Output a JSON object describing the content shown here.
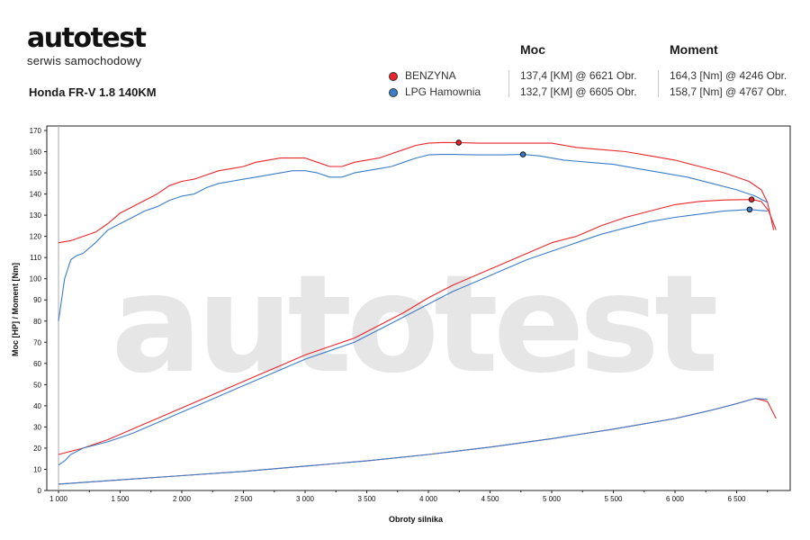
{
  "brand": {
    "logo": "autotest",
    "subtitle": "serwis samochodowy"
  },
  "vehicle": "Honda FR-V 1.8 140KM",
  "table": {
    "headers": {
      "power": "Moc",
      "torque": "Moment"
    },
    "rows": [
      {
        "name": "BENZYNA",
        "color": "#e8262b",
        "power": "137,4 [KM] @ 6621 Obr.",
        "torque": "164,3 [Nm] @ 4246 Obr."
      },
      {
        "name": "LPG Hamownia",
        "color": "#3a7dc9",
        "power": "132,7 [KM] @ 6605 Obr.",
        "torque": "158,7 [Nm] @ 4767 Obr."
      }
    ]
  },
  "chart_data": {
    "type": "line",
    "xlabel": "Obroty silnika",
    "ylabel": "Moc [HP] / Moment [Nm]",
    "xlim": [
      1000,
      6900
    ],
    "ylim": [
      0,
      170
    ],
    "x_ticks": [
      1000,
      1500,
      2000,
      2500,
      3000,
      3500,
      4000,
      4500,
      5000,
      5500,
      6000,
      6500
    ],
    "x_tick_labels": [
      "1 000",
      "1 500",
      "2 000",
      "2 500",
      "3 000",
      "3 500",
      "4 000",
      "4 500",
      "5 000",
      "5 500",
      "6 000",
      "6 500"
    ],
    "y_ticks": [
      0,
      10,
      20,
      30,
      40,
      50,
      60,
      70,
      80,
      90,
      100,
      110,
      120,
      130,
      140,
      150,
      160,
      170
    ],
    "grid": false,
    "watermark": "autotest",
    "series": [
      {
        "name": "BENZYNA",
        "kind": "torque",
        "color": "#e8262b",
        "x": [
          1000,
          1100,
          1200,
          1300,
          1400,
          1500,
          1600,
          1700,
          1800,
          1900,
          2000,
          2100,
          2200,
          2300,
          2400,
          2500,
          2600,
          2700,
          2800,
          2900,
          3000,
          3100,
          3200,
          3300,
          3400,
          3500,
          3600,
          3700,
          3800,
          3900,
          4000,
          4100,
          4246,
          4400,
          4600,
          4800,
          5000,
          5200,
          5400,
          5600,
          5800,
          6000,
          6200,
          6400,
          6600,
          6700,
          6750,
          6800
        ],
        "y": [
          117,
          118,
          120,
          122,
          126,
          131,
          134,
          137,
          140,
          144,
          146,
          147,
          149,
          151,
          152,
          153,
          155,
          156,
          157,
          157,
          157,
          155,
          153,
          153,
          155,
          156,
          157,
          159,
          161,
          163,
          164,
          164.3,
          164.3,
          164,
          164,
          164,
          164,
          162,
          161,
          160,
          158,
          156,
          153,
          150,
          146,
          142,
          136,
          123
        ]
      },
      {
        "name": "LPG Hamownia",
        "kind": "torque",
        "color": "#3a7dc9",
        "x": [
          1000,
          1050,
          1100,
          1150,
          1200,
          1300,
          1400,
          1500,
          1600,
          1700,
          1800,
          1900,
          2000,
          2100,
          2200,
          2300,
          2400,
          2500,
          2600,
          2700,
          2800,
          2900,
          3000,
          3100,
          3200,
          3300,
          3400,
          3500,
          3600,
          3700,
          3800,
          3900,
          4000,
          4100,
          4200,
          4400,
          4600,
          4767,
          4900,
          5100,
          5300,
          5500,
          5700,
          5900,
          6100,
          6300,
          6500,
          6650,
          6750
        ],
        "y": [
          80,
          100,
          109,
          111,
          112,
          117,
          123,
          126,
          129,
          132,
          134,
          137,
          139,
          140,
          143,
          145,
          146,
          147,
          148,
          149,
          150,
          151,
          151,
          150,
          148,
          148,
          150,
          151,
          152,
          153,
          155,
          157,
          158.5,
          158.7,
          158.7,
          158.5,
          158.5,
          158.7,
          158,
          156,
          155,
          154,
          152,
          150,
          148,
          145,
          142,
          139,
          136
        ]
      },
      {
        "name": "BENZYNA",
        "kind": "power",
        "color": "#e8262b",
        "x": [
          1000,
          1200,
          1400,
          1600,
          1800,
          2000,
          2200,
          2400,
          2600,
          2800,
          3000,
          3200,
          3400,
          3600,
          3800,
          4000,
          4200,
          4400,
          4600,
          4800,
          5000,
          5200,
          5400,
          5600,
          5800,
          6000,
          6200,
          6400,
          6621,
          6700,
          6760,
          6820
        ],
        "y": [
          17,
          20,
          24,
          29,
          34,
          39,
          44,
          49,
          54,
          59,
          64,
          68,
          72,
          78,
          84,
          91,
          97,
          102,
          107,
          112,
          117,
          120,
          125,
          129,
          132,
          135,
          136.5,
          137.2,
          137.4,
          136.5,
          132,
          123
        ]
      },
      {
        "name": "LPG Hamownia",
        "kind": "power",
        "color": "#3a7dc9",
        "x": [
          1000,
          1050,
          1100,
          1200,
          1400,
          1600,
          1800,
          2000,
          2200,
          2400,
          2600,
          2800,
          3000,
          3200,
          3400,
          3600,
          3800,
          4000,
          4200,
          4400,
          4600,
          4800,
          5000,
          5200,
          5400,
          5600,
          5800,
          6000,
          6200,
          6400,
          6605,
          6700,
          6750
        ],
        "y": [
          12,
          14,
          17,
          20,
          23,
          27,
          32,
          37,
          42,
          47,
          52,
          57,
          62,
          66,
          70,
          76,
          82,
          88,
          94,
          99,
          104,
          109,
          113,
          117,
          121,
          124,
          127,
          129,
          130.5,
          132,
          132.7,
          132.2,
          132
        ]
      },
      {
        "name": "BENZYNA",
        "kind": "loss",
        "color": "#e8262b",
        "x": [
          1000,
          1500,
          2000,
          2500,
          3000,
          3500,
          4000,
          4500,
          5000,
          5500,
          6000,
          6300,
          6500,
          6650,
          6750,
          6820
        ],
        "y": [
          3,
          5,
          7,
          9,
          11.5,
          14,
          17,
          20.5,
          24.5,
          29,
          34,
          38,
          41,
          43.5,
          42,
          34
        ]
      },
      {
        "name": "LPG Hamownia",
        "kind": "loss",
        "color": "#3a7dc9",
        "x": [
          1000,
          1500,
          2000,
          2500,
          3000,
          3500,
          4000,
          4500,
          5000,
          5500,
          6000,
          6300,
          6500,
          6650,
          6750
        ],
        "y": [
          3,
          5,
          7,
          9,
          11.5,
          14,
          17,
          20.5,
          24.5,
          29,
          34,
          38,
          41,
          43.5,
          43
        ]
      }
    ],
    "markers": [
      {
        "series": "BENZYNA",
        "kind": "torque",
        "x": 4246,
        "y": 164.3,
        "color": "#e8262b"
      },
      {
        "series": "LPG Hamownia",
        "kind": "torque",
        "x": 4767,
        "y": 158.7,
        "color": "#3a7dc9"
      },
      {
        "series": "BENZYNA",
        "kind": "power",
        "x": 6621,
        "y": 137.4,
        "color": "#e8262b"
      },
      {
        "series": "LPG Hamownia",
        "kind": "power",
        "x": 6605,
        "y": 132.7,
        "color": "#3a7dc9"
      }
    ]
  }
}
